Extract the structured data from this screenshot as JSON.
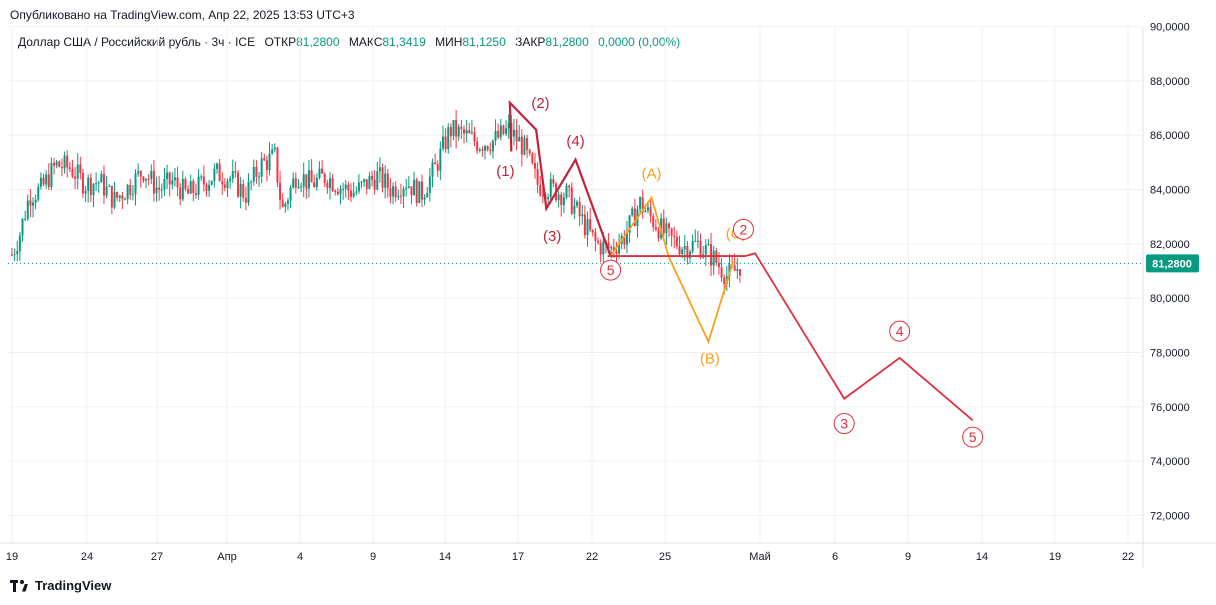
{
  "header": {
    "published": "Опубликовано на TradingView.com, Апр 22, 2025 13:53 UTC+3",
    "symbol": "Доллар США / Российский рубль · 3ч · ICE",
    "open_label": "ОТКР",
    "open": "81,2800",
    "high_label": "МАКС",
    "high": "81,3419",
    "low_label": "МИН",
    "low": "81,1250",
    "close_label": "ЗАКР",
    "close": "81,2800",
    "change": "0,0000 (0,00%)"
  },
  "footer": {
    "brand": "TradingView"
  },
  "colors": {
    "up": "#089981",
    "down": "#f23645",
    "wave_red": "#e0303e",
    "wave_dark": "#c2233a",
    "wave_orange": "#f7a21b",
    "grid": "#eef0f4",
    "price_tag": "#089981"
  },
  "chart_data": {
    "type": "candlestick",
    "ylim": [
      71.5,
      90.5
    ],
    "y_ticks": [
      "90,0000",
      "88,0000",
      "86,0000",
      "84,0000",
      "82,0000",
      "80,0000",
      "78,0000",
      "76,0000",
      "74,0000",
      "72,0000"
    ],
    "x_ticks": [
      "19",
      "24",
      "27",
      "Апр",
      "4",
      "9",
      "14",
      "17",
      "22",
      "25",
      "Май",
      "6",
      "9",
      "14",
      "19",
      "22"
    ],
    "last_price": "81,2800",
    "last_price_value": 81.28,
    "price_path": [
      {
        "day": 0,
        "p": 81.6
      },
      {
        "day": 0.5,
        "p": 82.3
      },
      {
        "day": 1.2,
        "p": 83.8
      },
      {
        "day": 2,
        "p": 84.0
      },
      {
        "day": 3,
        "p": 84.9
      },
      {
        "day": 4,
        "p": 84.8
      },
      {
        "day": 5,
        "p": 84.2
      },
      {
        "day": 6,
        "p": 84.3
      },
      {
        "day": 7,
        "p": 83.6
      },
      {
        "day": 8,
        "p": 84.1
      },
      {
        "day": 9,
        "p": 84.7
      },
      {
        "day": 10,
        "p": 84.0
      },
      {
        "day": 11,
        "p": 84.3
      },
      {
        "day": 12,
        "p": 83.8
      },
      {
        "day": 13,
        "p": 84.2
      },
      {
        "day": 14,
        "p": 84.6
      },
      {
        "day": 15,
        "p": 84.4
      },
      {
        "day": 16,
        "p": 83.8
      },
      {
        "day": 17,
        "p": 84.9
      },
      {
        "day": 18,
        "p": 85.2
      },
      {
        "day": 18.5,
        "p": 83.2
      },
      {
        "day": 19.5,
        "p": 84.6
      },
      {
        "day": 20.5,
        "p": 84.2
      },
      {
        "day": 21.5,
        "p": 84.5
      },
      {
        "day": 22.5,
        "p": 84.1
      },
      {
        "day": 23.5,
        "p": 83.9
      },
      {
        "day": 24.5,
        "p": 84.3
      },
      {
        "day": 25,
        "p": 84.5
      },
      {
        "day": 26,
        "p": 84.0
      },
      {
        "day": 27,
        "p": 84.3
      },
      {
        "day": 28,
        "p": 83.8
      },
      {
        "day": 29,
        "p": 84.8
      },
      {
        "day": 30,
        "p": 86.2
      },
      {
        "day": 31,
        "p": 86.0
      },
      {
        "day": 32,
        "p": 85.7
      },
      {
        "day": 33,
        "p": 85.8
      },
      {
        "day": 34,
        "p": 86.2
      },
      {
        "day": 35,
        "p": 85.6
      },
      {
        "day": 36,
        "p": 84.2
      },
      {
        "day": 37,
        "p": 84.0
      },
      {
        "day": 38,
        "p": 83.8
      },
      {
        "day": 39,
        "p": 82.9
      },
      {
        "day": 40,
        "p": 82.0
      },
      {
        "day": 41,
        "p": 81.8
      },
      {
        "day": 42,
        "p": 82.3
      },
      {
        "day": 43,
        "p": 83.5
      },
      {
        "day": 44,
        "p": 82.8
      },
      {
        "day": 45,
        "p": 82.2
      },
      {
        "day": 46,
        "p": 81.9
      },
      {
        "day": 47,
        "p": 82.0
      },
      {
        "day": 48,
        "p": 81.5
      },
      {
        "day": 49,
        "p": 80.8
      },
      {
        "day": 49.5,
        "p": 81.0
      },
      {
        "day": 50,
        "p": 81.3
      }
    ],
    "wave_red_main": [
      {
        "day": 40.8,
        "p": 81.55
      },
      {
        "day": 49.5,
        "p": 81.55
      },
      {
        "day": 50.2,
        "p": 81.55
      },
      {
        "day": 50.9,
        "p": 81.65
      },
      {
        "day": 57,
        "p": 76.3
      },
      {
        "day": 60.8,
        "p": 77.8
      },
      {
        "day": 65.8,
        "p": 75.5
      }
    ],
    "wave_dark": [
      {
        "day": 34.2,
        "p": 85.4
      },
      {
        "day": 34.1,
        "p": 87.2
      },
      {
        "day": 35.9,
        "p": 86.2
      },
      {
        "day": 36.6,
        "p": 83.3
      },
      {
        "day": 38.6,
        "p": 85.1
      },
      {
        "day": 41,
        "p": 81.55
      }
    ],
    "wave_orange": [
      {
        "day": 41,
        "p": 81.55
      },
      {
        "day": 43.8,
        "p": 83.7
      },
      {
        "day": 45,
        "p": 81.5
      },
      {
        "day": 47.7,
        "p": 78.4
      },
      {
        "day": 49.4,
        "p": 81.35
      }
    ],
    "wave_labels": [
      {
        "text": "(2)",
        "day": 36.2,
        "p": 87.0,
        "color": "dark"
      },
      {
        "text": "(1)",
        "day": 33.8,
        "p": 84.5,
        "color": "dark"
      },
      {
        "text": "(4)",
        "day": 38.6,
        "p": 85.6,
        "color": "dark"
      },
      {
        "text": "(3)",
        "day": 37.0,
        "p": 82.1,
        "color": "dark"
      },
      {
        "text": "(A)",
        "day": 43.8,
        "p": 84.4,
        "color": "orange"
      },
      {
        "text": "(B)",
        "day": 47.8,
        "p": 77.6,
        "color": "orange"
      },
      {
        "text": "(C)",
        "day": 49.6,
        "p": 82.2,
        "color": "orange"
      }
    ],
    "circle_labels": [
      {
        "text": "5",
        "day": 41.0,
        "p": 80.85,
        "color": "red"
      },
      {
        "text": "2",
        "day": 50.1,
        "p": 82.35,
        "color": "red"
      },
      {
        "text": "3",
        "day": 57.0,
        "p": 75.2,
        "color": "red"
      },
      {
        "text": "4",
        "day": 60.8,
        "p": 78.6,
        "color": "red"
      },
      {
        "text": "5",
        "day": 65.8,
        "p": 74.7,
        "color": "red"
      }
    ]
  }
}
